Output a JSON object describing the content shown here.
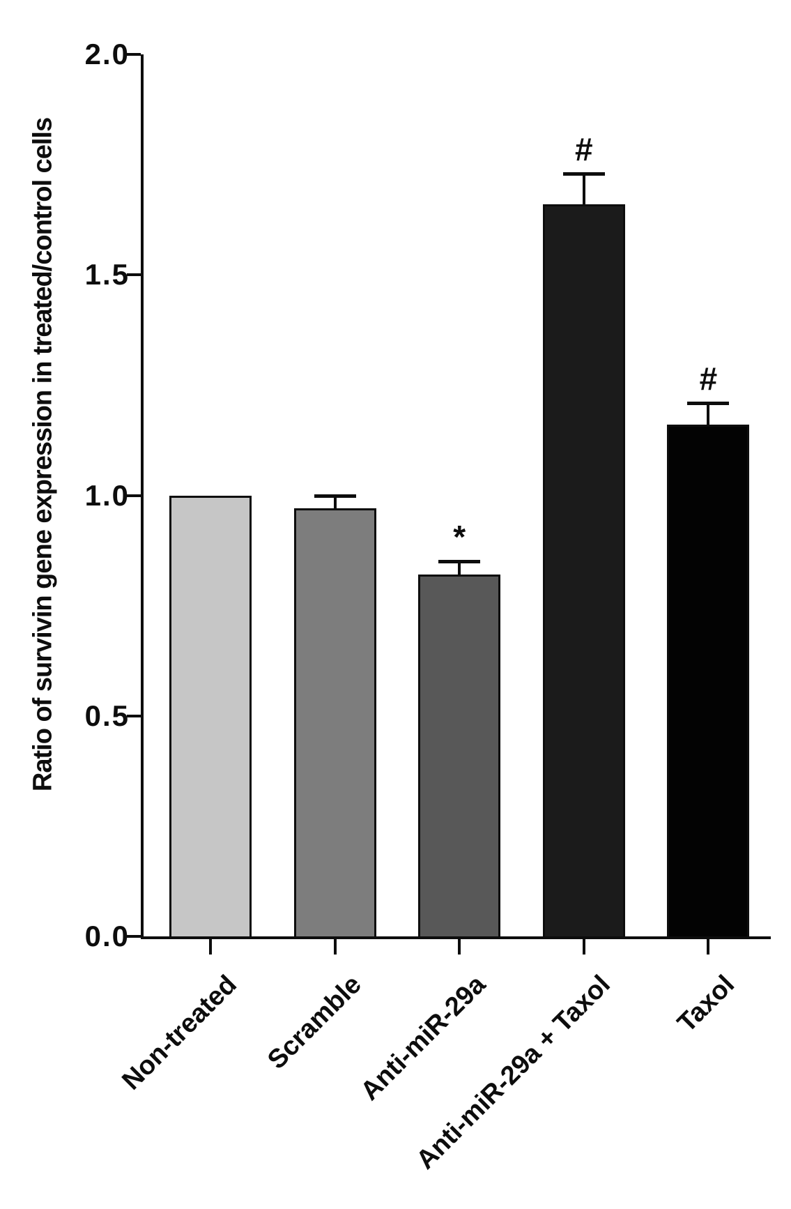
{
  "chart_data": {
    "type": "bar",
    "title": "",
    "xlabel": "",
    "ylabel": "Ratio of survivin gene expression in treated/control cells",
    "ylim": [
      0.0,
      2.0
    ],
    "yticks": [
      0.0,
      0.5,
      1.0,
      1.5,
      2.0
    ],
    "ytick_labels": [
      "0.0",
      "0.5",
      "1.0",
      "1.5",
      "2.0"
    ],
    "grid": false,
    "legend_position": "none",
    "categories": [
      "Non-treated",
      "Scramble",
      "Anti-miR-29a",
      "Anti-miR-29a + Taxol",
      "Taxol"
    ],
    "series": [
      {
        "name": "Ratio of survivin gene expression",
        "values": [
          1.0,
          0.97,
          0.82,
          1.66,
          1.16
        ],
        "errors_plus": [
          0,
          0.03,
          0.03,
          0.07,
          0.05
        ],
        "significance_markers": [
          "",
          "",
          "*",
          "#",
          "#"
        ],
        "bar_colors": [
          "#c6c6c6",
          "#7d7d7d",
          "#585858",
          "#1b1b1b",
          "#030303"
        ]
      }
    ]
  }
}
